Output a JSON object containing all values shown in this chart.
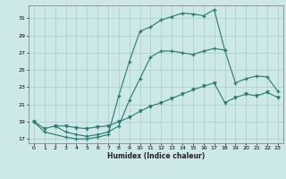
{
  "xlabel": "Humidex (Indice chaleur)",
  "background_color": "#cce8e8",
  "grid_color": "#aacccc",
  "line_color": "#2a7a70",
  "xlim": [
    -0.5,
    23.5
  ],
  "ylim": [
    16.5,
    32.5
  ],
  "yticks": [
    17,
    19,
    21,
    23,
    25,
    27,
    29,
    31
  ],
  "xticks": [
    0,
    1,
    2,
    3,
    4,
    5,
    6,
    7,
    8,
    9,
    10,
    11,
    12,
    13,
    14,
    15,
    16,
    17,
    18,
    19,
    20,
    21,
    22,
    23
  ],
  "line1_x": [
    0,
    1,
    3,
    4,
    5,
    6,
    7,
    8,
    9,
    10,
    11,
    12,
    13,
    14,
    15,
    16,
    17,
    18
  ],
  "line1_y": [
    19,
    17.8,
    17.2,
    17.0,
    17.0,
    17.2,
    17.5,
    22.0,
    26.0,
    29.5,
    30.0,
    30.8,
    31.2,
    31.6,
    31.5,
    31.3,
    32.0,
    27.3
  ],
  "line2_x": [
    2,
    3,
    4,
    5,
    6,
    7,
    8,
    9,
    10,
    11,
    12,
    13,
    14,
    15,
    16,
    17,
    18,
    19,
    20,
    21,
    22,
    23
  ],
  "line2_y": [
    18.5,
    17.8,
    17.5,
    17.3,
    17.5,
    17.8,
    18.5,
    21.5,
    24.0,
    26.5,
    27.2,
    27.2,
    27.0,
    26.8,
    27.2,
    27.5,
    27.3,
    23.5,
    24.0,
    24.3,
    24.2,
    22.5
  ],
  "line3_x": [
    0,
    1,
    2,
    3,
    4,
    5,
    6,
    7,
    8,
    9,
    10,
    11,
    12,
    13,
    14,
    15,
    16,
    17,
    18,
    19,
    20,
    21,
    22,
    23
  ],
  "line3_y": [
    19.0,
    18.2,
    18.5,
    18.5,
    18.3,
    18.2,
    18.4,
    18.5,
    19.0,
    19.5,
    20.2,
    20.8,
    21.2,
    21.7,
    22.2,
    22.7,
    23.1,
    23.5,
    21.2,
    21.8,
    22.2,
    22.0,
    22.4,
    21.8
  ]
}
